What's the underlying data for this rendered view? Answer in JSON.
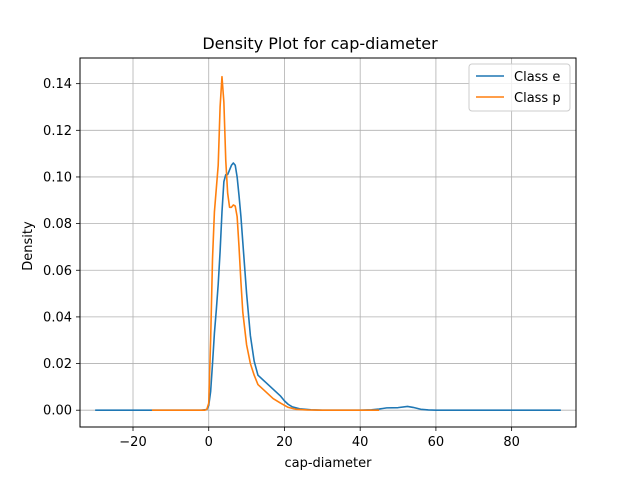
{
  "chart_data": {
    "type": "line",
    "title": "Density Plot for cap-diameter",
    "xlabel": "cap-diameter",
    "ylabel": "Density",
    "xlim": [
      -34,
      97
    ],
    "ylim": [
      -0.0072,
      0.151
    ],
    "xticks": [
      -20,
      0,
      20,
      40,
      60,
      80
    ],
    "xtick_labels": [
      "−20",
      "0",
      "20",
      "40",
      "60",
      "80"
    ],
    "yticks": [
      0.0,
      0.02,
      0.04,
      0.06,
      0.08,
      0.1,
      0.12,
      0.14
    ],
    "ytick_labels": [
      "0.00",
      "0.02",
      "0.04",
      "0.06",
      "0.08",
      "0.10",
      "0.12",
      "0.14"
    ],
    "grid": true,
    "legend_position": "top-right",
    "series": [
      {
        "name": "Class e",
        "color": "#1f77b4",
        "points": [
          [
            -30,
            0.0
          ],
          [
            -10,
            0.0
          ],
          [
            -2,
            0.0
          ],
          [
            -0.5,
            0.0003
          ],
          [
            0,
            0.002
          ],
          [
            0.5,
            0.008
          ],
          [
            1,
            0.02
          ],
          [
            1.5,
            0.033
          ],
          [
            2,
            0.043
          ],
          [
            2.5,
            0.054
          ],
          [
            3,
            0.068
          ],
          [
            3.5,
            0.085
          ],
          [
            4,
            0.098
          ],
          [
            4.5,
            0.101
          ],
          [
            5,
            0.101
          ],
          [
            5.5,
            0.103
          ],
          [
            6,
            0.105
          ],
          [
            6.5,
            0.106
          ],
          [
            7,
            0.105
          ],
          [
            7.5,
            0.1
          ],
          [
            8,
            0.092
          ],
          [
            8.5,
            0.083
          ],
          [
            9,
            0.072
          ],
          [
            10,
            0.05
          ],
          [
            11,
            0.032
          ],
          [
            12,
            0.021
          ],
          [
            13,
            0.015
          ],
          [
            15,
            0.012
          ],
          [
            17,
            0.009
          ],
          [
            19,
            0.006
          ],
          [
            20,
            0.004
          ],
          [
            21,
            0.0025
          ],
          [
            22,
            0.0015
          ],
          [
            24,
            0.0006
          ],
          [
            27,
            0.0002
          ],
          [
            30,
            0.0
          ],
          [
            40,
            0.0
          ],
          [
            43,
            0.0002
          ],
          [
            45,
            0.0005
          ],
          [
            47,
            0.001
          ],
          [
            50,
            0.0011
          ],
          [
            52.5,
            0.0016
          ],
          [
            54,
            0.0012
          ],
          [
            56,
            0.0004
          ],
          [
            58,
            0.0001
          ],
          [
            60,
            0.0
          ],
          [
            80,
            0.0
          ],
          [
            93,
            0.0
          ]
        ]
      },
      {
        "name": "Class p",
        "color": "#ff7f0e",
        "points": [
          [
            -15,
            0.0
          ],
          [
            -5,
            0.0
          ],
          [
            -1,
            0.0
          ],
          [
            -0.5,
            0.0004
          ],
          [
            0,
            0.003
          ],
          [
            0.5,
            0.03
          ],
          [
            1,
            0.065
          ],
          [
            1.5,
            0.085
          ],
          [
            2,
            0.095
          ],
          [
            2.5,
            0.105
          ],
          [
            3,
            0.13
          ],
          [
            3.5,
            0.143
          ],
          [
            4,
            0.132
          ],
          [
            4.5,
            0.107
          ],
          [
            5,
            0.093
          ],
          [
            5.5,
            0.087
          ],
          [
            6,
            0.087
          ],
          [
            6.5,
            0.088
          ],
          [
            7,
            0.0875
          ],
          [
            7.5,
            0.083
          ],
          [
            8,
            0.07
          ],
          [
            8.5,
            0.055
          ],
          [
            9,
            0.042
          ],
          [
            10,
            0.028
          ],
          [
            11,
            0.02
          ],
          [
            12,
            0.015
          ],
          [
            13,
            0.011
          ],
          [
            15,
            0.008
          ],
          [
            17,
            0.005
          ],
          [
            19,
            0.003
          ],
          [
            21,
            0.0012
          ],
          [
            23,
            0.0004
          ],
          [
            26,
            0.0001
          ],
          [
            30,
            0.0
          ],
          [
            40,
            0.0
          ],
          [
            45,
            0.0
          ]
        ]
      }
    ]
  }
}
